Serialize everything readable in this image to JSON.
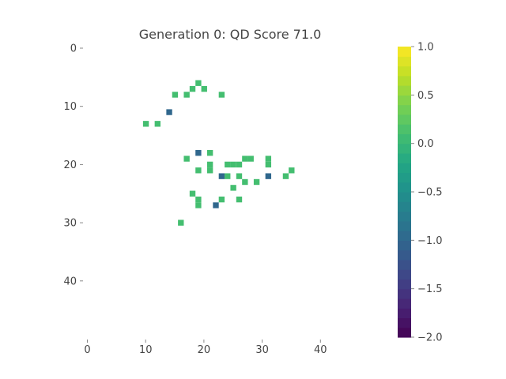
{
  "chart_data": {
    "type": "heatmap",
    "title": "Generation 0: QD Score 71.0",
    "xlabel": "",
    "ylabel": "",
    "xlim": [
      0,
      50
    ],
    "ylim": [
      0,
      50
    ],
    "y_inverted": true,
    "x_ticks": [
      0,
      10,
      20,
      30,
      40
    ],
    "y_ticks": [
      0,
      10,
      20,
      30,
      40
    ],
    "x_tick_labels": [
      "0",
      "10",
      "20",
      "30",
      "40"
    ],
    "y_tick_labels": [
      "0",
      "10",
      "20",
      "30",
      "40"
    ],
    "grid": false,
    "colormap": "viridis",
    "color_range": [
      -2.0,
      1.0
    ],
    "colorbar": {
      "position": "right",
      "ticks": [
        1.0,
        0.5,
        0.0,
        -0.5,
        -1.0,
        -1.5,
        -2.0
      ],
      "tick_labels": [
        "1.0",
        "0.5",
        "0.0",
        "−0.5",
        "−1.0",
        "−1.5",
        "−2.0"
      ],
      "levels": 30
    },
    "cells": [
      {
        "x": 20,
        "y": 6,
        "value": 0.1
      },
      {
        "x": 19,
        "y": 7,
        "value": 0.1
      },
      {
        "x": 21,
        "y": 7,
        "value": 0.1
      },
      {
        "x": 16,
        "y": 8,
        "value": 0.1
      },
      {
        "x": 18,
        "y": 8,
        "value": 0.1
      },
      {
        "x": 24,
        "y": 8,
        "value": 0.1
      },
      {
        "x": 15,
        "y": 11,
        "value": -1.0
      },
      {
        "x": 11,
        "y": 13,
        "value": 0.1
      },
      {
        "x": 13,
        "y": 13,
        "value": 0.1
      },
      {
        "x": 20,
        "y": 18,
        "value": -1.0
      },
      {
        "x": 22,
        "y": 18,
        "value": 0.1
      },
      {
        "x": 18,
        "y": 19,
        "value": 0.1
      },
      {
        "x": 28,
        "y": 19,
        "value": 0.1
      },
      {
        "x": 29,
        "y": 19,
        "value": 0.1
      },
      {
        "x": 32,
        "y": 19,
        "value": 0.1
      },
      {
        "x": 22,
        "y": 20,
        "value": 0.1
      },
      {
        "x": 25,
        "y": 20,
        "value": 0.1
      },
      {
        "x": 26,
        "y": 20,
        "value": 0.1
      },
      {
        "x": 27,
        "y": 20,
        "value": 0.1
      },
      {
        "x": 32,
        "y": 20,
        "value": 0.1
      },
      {
        "x": 20,
        "y": 21,
        "value": 0.1
      },
      {
        "x": 22,
        "y": 21,
        "value": 0.1
      },
      {
        "x": 36,
        "y": 21,
        "value": 0.1
      },
      {
        "x": 24,
        "y": 22,
        "value": -1.0
      },
      {
        "x": 25,
        "y": 22,
        "value": 0.1
      },
      {
        "x": 27,
        "y": 22,
        "value": 0.1
      },
      {
        "x": 32,
        "y": 22,
        "value": -1.0
      },
      {
        "x": 35,
        "y": 22,
        "value": 0.1
      },
      {
        "x": 28,
        "y": 23,
        "value": 0.1
      },
      {
        "x": 30,
        "y": 23,
        "value": 0.1
      },
      {
        "x": 26,
        "y": 24,
        "value": 0.1
      },
      {
        "x": 19,
        "y": 25,
        "value": 0.1
      },
      {
        "x": 20,
        "y": 26,
        "value": 0.1
      },
      {
        "x": 24,
        "y": 26,
        "value": 0.1
      },
      {
        "x": 27,
        "y": 26,
        "value": 0.1
      },
      {
        "x": 20,
        "y": 27,
        "value": 0.1
      },
      {
        "x": 23,
        "y": 27,
        "value": -1.0
      },
      {
        "x": 17,
        "y": 30,
        "value": 0.1
      }
    ]
  }
}
